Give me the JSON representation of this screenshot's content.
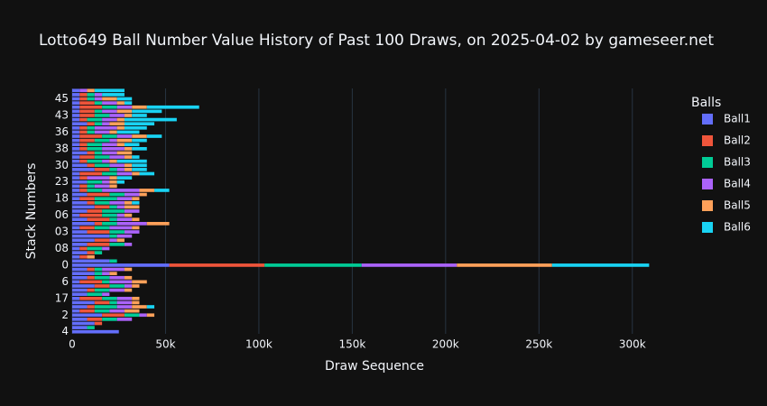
{
  "chart_data": {
    "type": "bar",
    "orientation": "horizontal",
    "barmode": "stack",
    "title": "Lotto649 Ball Number Value History of Past 100 Draws, on 2025-04-02 by gameseer.net",
    "x_label": "Draw Sequence",
    "y_label": "Stack Numbers",
    "legend_title": "Balls",
    "categories": [
      "4",
      null,
      null,
      null,
      "2",
      null,
      null,
      null,
      "17",
      null,
      null,
      null,
      "6",
      null,
      null,
      null,
      "0",
      null,
      null,
      null,
      "08",
      null,
      null,
      null,
      "03",
      null,
      null,
      null,
      "06",
      null,
      null,
      null,
      "18",
      null,
      null,
      null,
      "23",
      null,
      null,
      null,
      "30",
      null,
      null,
      null,
      "38",
      null,
      null,
      null,
      "36",
      null,
      null,
      null,
      "43",
      null,
      null,
      null,
      "45",
      null,
      null
    ],
    "xlim": [
      0,
      318000
    ],
    "xticks": [
      0,
      {
        "value": 50000,
        "label": "50k"
      },
      {
        "value": 100000,
        "label": "100k"
      },
      {
        "value": 150000,
        "label": "150k"
      },
      {
        "value": 200000,
        "label": "200k"
      },
      {
        "value": 250000,
        "label": "250k"
      },
      {
        "value": 300000,
        "label": "300k"
      }
    ],
    "grid": true,
    "series": [
      {
        "name": "Ball1",
        "color": "#636efa",
        "values": [
          25000,
          8000,
          12000,
          8000,
          16000,
          4000,
          8000,
          12000,
          4000,
          8000,
          8000,
          12000,
          4000,
          8000,
          12000,
          8000,
          52000,
          20000,
          4000,
          8000,
          4000,
          8000,
          12000,
          20000,
          8000,
          4000,
          12000,
          8000,
          4000,
          8000,
          12000,
          8000,
          4000,
          8000,
          4000,
          4000,
          8000,
          4000,
          4000,
          12000,
          8000,
          4000,
          4000,
          8000,
          4000,
          4000,
          4000,
          4000,
          4000,
          4000,
          8000,
          4000,
          4000,
          4000,
          4000,
          4000,
          4000,
          4000,
          4000
        ]
      },
      {
        "name": "Ball2",
        "color": "#EF553B",
        "values": [
          0,
          0,
          4000,
          8000,
          12000,
          8000,
          4000,
          8000,
          12000,
          0,
          4000,
          8000,
          12000,
          4000,
          0,
          4000,
          51000,
          0,
          4000,
          4000,
          4000,
          12000,
          8000,
          0,
          12000,
          8000,
          4000,
          12000,
          12000,
          8000,
          8000,
          4000,
          8000,
          12000,
          4000,
          4000,
          0,
          4000,
          12000,
          8000,
          4000,
          4000,
          8000,
          4000,
          4000,
          4000,
          8000,
          12000,
          4000,
          4000,
          4000,
          4000,
          8000,
          8000,
          12000,
          8000,
          4000,
          4000,
          0
        ]
      },
      {
        "name": "Ball3",
        "color": "#00cc96",
        "values": [
          0,
          4000,
          0,
          8000,
          8000,
          8000,
          12000,
          4000,
          8000,
          8000,
          8000,
          8000,
          4000,
          8000,
          4000,
          4000,
          52000,
          4000,
          0,
          4000,
          8000,
          8000,
          0,
          4000,
          8000,
          8000,
          8000,
          4000,
          8000,
          12000,
          4000,
          8000,
          12000,
          8000,
          8000,
          4000,
          8000,
          0,
          8000,
          4000,
          8000,
          8000,
          8000,
          4000,
          8000,
          8000,
          8000,
          8000,
          4000,
          4000,
          4000,
          8000,
          8000,
          4000,
          8000,
          4000,
          4000,
          4000,
          0
        ]
      },
      {
        "name": "Ball4",
        "color": "#ab63fa",
        "values": [
          0,
          0,
          0,
          8000,
          4000,
          8000,
          8000,
          8000,
          8000,
          4000,
          8000,
          4000,
          12000,
          8000,
          4000,
          12000,
          51000,
          0,
          0,
          0,
          4000,
          4000,
          4000,
          8000,
          8000,
          12000,
          16000,
          8000,
          4000,
          8000,
          4000,
          8000,
          8000,
          8000,
          20000,
          8000,
          4000,
          12000,
          8000,
          4000,
          8000,
          4000,
          8000,
          8000,
          12000,
          8000,
          4000,
          8000,
          8000,
          12000,
          4000,
          8000,
          8000,
          8000,
          8000,
          8000,
          4000,
          4000,
          4000
        ]
      },
      {
        "name": "Ball5",
        "color": "#FFA15A",
        "values": [
          0,
          0,
          0,
          0,
          4000,
          8000,
          8000,
          4000,
          4000,
          0,
          4000,
          4000,
          8000,
          4000,
          4000,
          4000,
          51000,
          0,
          4000,
          0,
          0,
          0,
          4000,
          0,
          0,
          4000,
          12000,
          4000,
          4000,
          0,
          8000,
          4000,
          4000,
          4000,
          8000,
          4000,
          4000,
          4000,
          4000,
          4000,
          4000,
          4000,
          4000,
          8000,
          4000,
          4000,
          8000,
          8000,
          4000,
          4000,
          8000,
          4000,
          4000,
          8000,
          8000,
          4000,
          8000,
          0,
          4000
        ]
      },
      {
        "name": "Ball6",
        "color": "#19d3f3",
        "values": [
          0,
          0,
          0,
          0,
          0,
          0,
          4000,
          0,
          0,
          0,
          0,
          0,
          0,
          0,
          0,
          0,
          52000,
          0,
          0,
          0,
          0,
          0,
          0,
          0,
          0,
          0,
          0,
          0,
          0,
          0,
          0,
          4000,
          0,
          0,
          8000,
          0,
          4000,
          8000,
          8000,
          8000,
          8000,
          16000,
          4000,
          0,
          8000,
          8000,
          8000,
          8000,
          12000,
          12000,
          16000,
          28000,
          8000,
          16000,
          28000,
          4000,
          8000,
          12000,
          16000
        ]
      }
    ]
  }
}
